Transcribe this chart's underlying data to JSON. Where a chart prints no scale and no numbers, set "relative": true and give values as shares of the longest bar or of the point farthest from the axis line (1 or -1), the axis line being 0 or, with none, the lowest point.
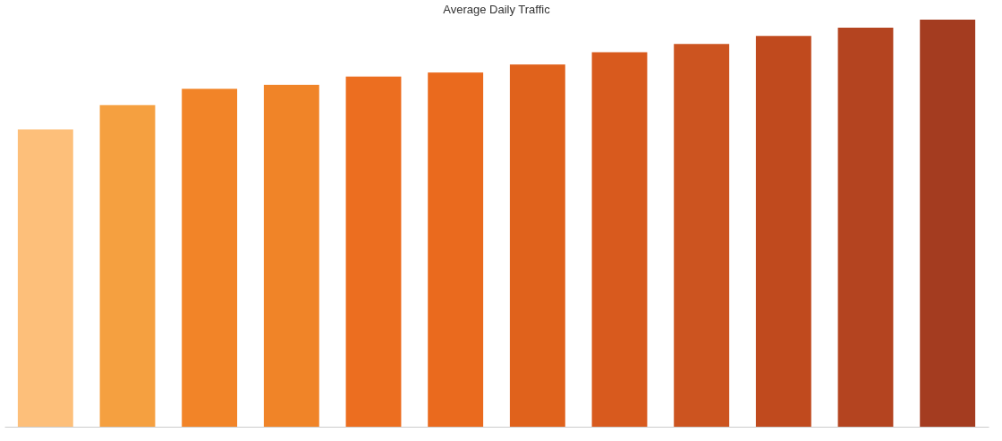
{
  "chart_data": {
    "type": "bar",
    "title": "Average Daily Traffic",
    "relative": true,
    "categories": [
      null,
      null,
      null,
      null,
      null,
      null,
      null,
      null,
      null,
      null,
      null,
      null
    ],
    "values": [
      0.73,
      0.79,
      0.83,
      0.84,
      0.86,
      0.87,
      0.89,
      0.92,
      0.94,
      0.96,
      0.98,
      1
    ],
    "colors": [
      "#fdbf7a",
      "#f5a040",
      "#f28428",
      "#f08428",
      "#ec6e20",
      "#ea6a1e",
      "#e0621c",
      "#d85a1e",
      "#cc5420",
      "#c04a1e",
      "#b44420",
      "#a43c20"
    ]
  }
}
